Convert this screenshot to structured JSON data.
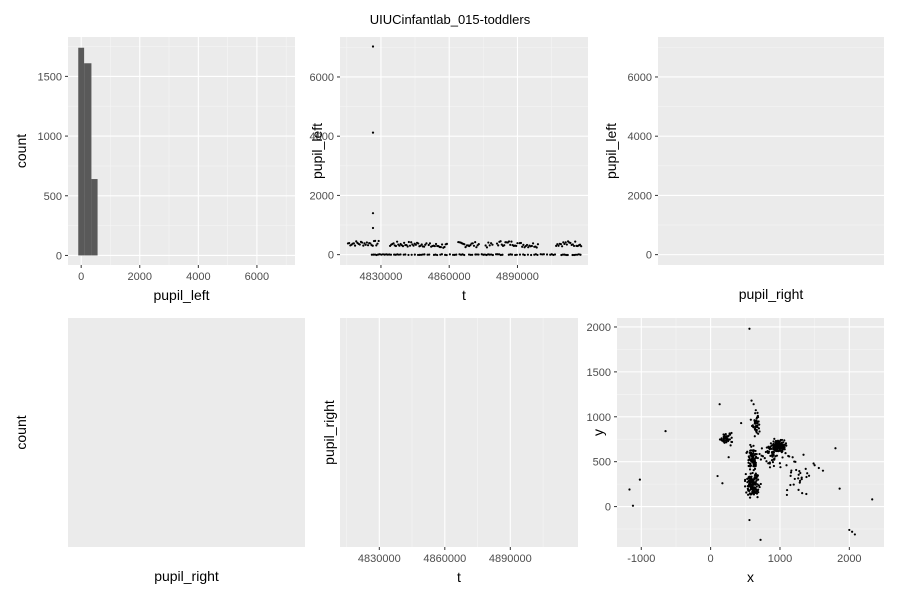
{
  "figure_title": "UIUCinfantlab_015-toddlers",
  "chart_data": [
    {
      "type": "bar",
      "subtype": "histogram",
      "xlabel": "pupil_left",
      "ylabel": "count",
      "xlim": [
        -450,
        7300
      ],
      "ylim": [
        -80,
        1830
      ],
      "xticks": [
        0,
        2000,
        4000,
        6000
      ],
      "yticks": [
        0,
        500,
        1000,
        1500
      ],
      "bins": [
        {
          "x0": -100,
          "x1": 100,
          "count": 1740
        },
        {
          "x0": 100,
          "x1": 350,
          "count": 1610
        },
        {
          "x0": 350,
          "x1": 560,
          "count": 640
        }
      ],
      "bar_color": "#595959"
    },
    {
      "type": "scatter",
      "xlabel": "t",
      "ylabel": "pupil_left",
      "xlim": [
        4812000,
        4921000
      ],
      "ylim": [
        -350,
        7350
      ],
      "xticks": [
        4830000,
        4860000,
        4890000
      ],
      "yticks": [
        0,
        2000,
        4000,
        6000
      ],
      "outliers": [
        [
          4826500,
          7030
        ],
        [
          4826500,
          4120
        ],
        [
          4826500,
          1400
        ],
        [
          4826500,
          900
        ]
      ],
      "segments": [
        {
          "x0": 4815500,
          "x1": 4829000,
          "y": 380
        },
        {
          "x0": 4834000,
          "x1": 4850000,
          "y": 350
        },
        {
          "x0": 4851000,
          "x1": 4859000,
          "y": 300
        },
        {
          "x0": 4864000,
          "x1": 4873000,
          "y": 340
        },
        {
          "x0": 4876000,
          "x1": 4879000,
          "y": 320
        },
        {
          "x0": 4881000,
          "x1": 4890000,
          "y": 380
        },
        {
          "x0": 4891000,
          "x1": 4899000,
          "y": 330
        },
        {
          "x0": 4907000,
          "x1": 4918000,
          "y": 370
        }
      ],
      "baseline": {
        "x0": 4826000,
        "x1": 4918000,
        "y": 0
      }
    },
    {
      "type": "scatter",
      "xlabel": "pupil_right",
      "ylabel": "pupil_left",
      "ylim": [
        -350,
        7350
      ],
      "yticks": [
        0,
        2000,
        4000,
        6000
      ],
      "points": []
    },
    {
      "type": "bar",
      "subtype": "histogram",
      "xlabel": "pupil_right",
      "ylabel": "count",
      "bins": []
    },
    {
      "type": "scatter",
      "xlabel": "t",
      "ylabel": "pupil_right",
      "xlim": [
        4812000,
        4921000
      ],
      "xticks": [
        4830000,
        4860000,
        4890000
      ],
      "points": []
    },
    {
      "type": "scatter",
      "xlabel": "x",
      "ylabel": "y",
      "xlim": [
        -1350,
        2500
      ],
      "ylim": [
        -450,
        2100
      ],
      "xticks": [
        -1000,
        0,
        1000,
        2000
      ],
      "yticks": [
        0,
        500,
        1000,
        1500,
        2000
      ],
      "outliers": [
        [
          -1170,
          190
        ],
        [
          -1120,
          10
        ],
        [
          -1020,
          300
        ],
        [
          -650,
          840
        ],
        [
          560,
          1980
        ],
        [
          590,
          1180
        ],
        [
          620,
          1140
        ],
        [
          720,
          -370
        ],
        [
          560,
          -150
        ],
        [
          1800,
          650
        ],
        [
          1860,
          200
        ],
        [
          2000,
          -260
        ],
        [
          2040,
          -280
        ],
        [
          2080,
          -310
        ],
        [
          2330,
          80
        ],
        [
          1560,
          430
        ],
        [
          1620,
          400
        ],
        [
          1500,
          460
        ],
        [
          1150,
          240
        ],
        [
          1100,
          130
        ],
        [
          1320,
          150
        ],
        [
          1380,
          140
        ],
        [
          100,
          340
        ],
        [
          170,
          260
        ],
        [
          130,
          1140
        ],
        [
          440,
          930
        ],
        [
          300,
          720
        ],
        [
          260,
          550
        ]
      ],
      "clusters": [
        {
          "cx": 220,
          "cy": 760,
          "sx": 70,
          "sy": 50,
          "n": 45
        },
        {
          "cx": 600,
          "cy": 240,
          "sx": 80,
          "sy": 110,
          "n": 130
        },
        {
          "cx": 600,
          "cy": 530,
          "sx": 50,
          "sy": 110,
          "n": 80
        },
        {
          "cx": 650,
          "cy": 920,
          "sx": 50,
          "sy": 120,
          "n": 40
        },
        {
          "cx": 970,
          "cy": 670,
          "sx": 90,
          "sy": 50,
          "n": 140
        },
        {
          "cx": 850,
          "cy": 560,
          "sx": 140,
          "sy": 120,
          "n": 40
        },
        {
          "cx": 1250,
          "cy": 380,
          "sx": 220,
          "sy": 180,
          "n": 30
        }
      ]
    }
  ]
}
